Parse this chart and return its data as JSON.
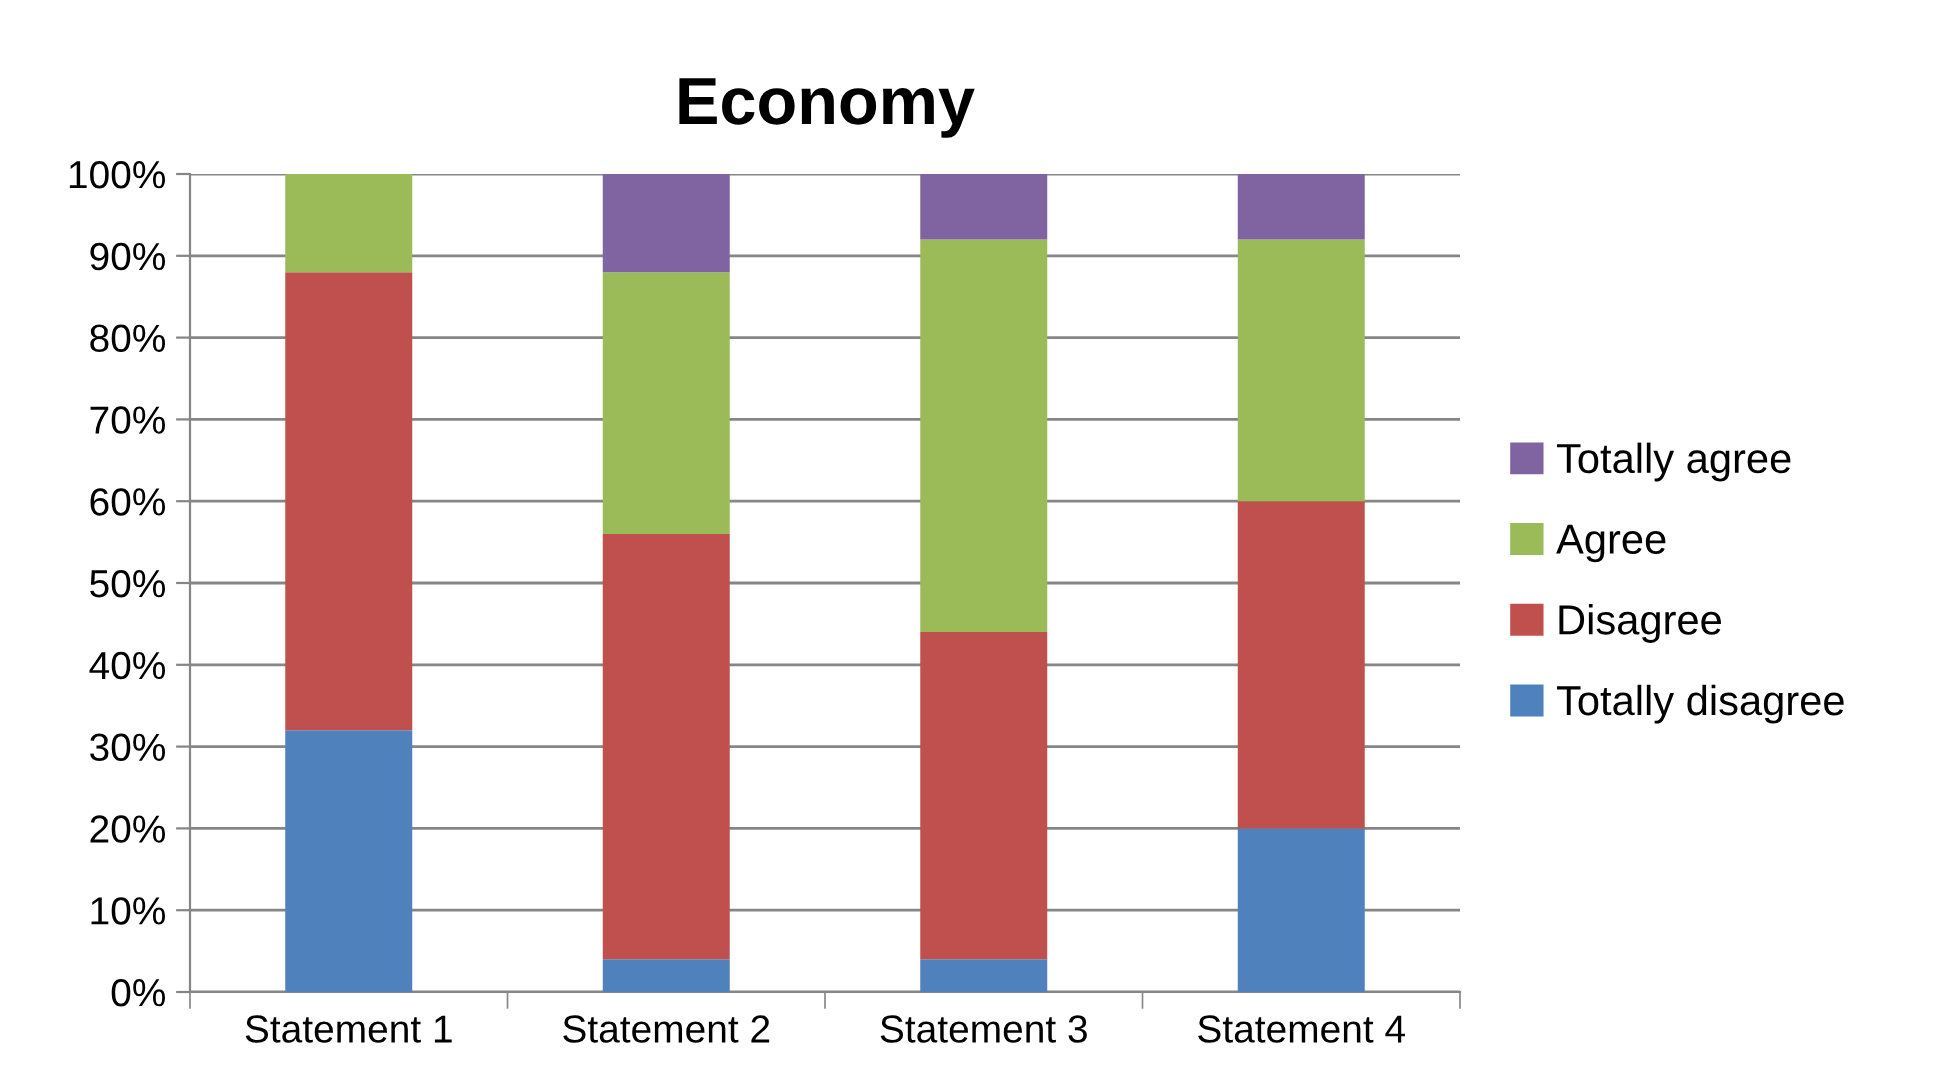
{
  "chart_data": {
    "type": "bar",
    "title": "Economy",
    "stacked": true,
    "categories": [
      "Statement 1",
      "Statement 2",
      "Statement 3",
      "Statement 4"
    ],
    "series": [
      {
        "name": "Totally disagree",
        "color": "#4f81bd",
        "values": [
          32,
          4,
          4,
          20
        ]
      },
      {
        "name": "Disagree",
        "color": "#c0504d",
        "values": [
          56,
          52,
          40,
          40
        ]
      },
      {
        "name": "Agree",
        "color": "#9bbb59",
        "values": [
          12,
          32,
          48,
          32
        ]
      },
      {
        "name": "Totally agree",
        "color": "#8064a2",
        "values": [
          0,
          12,
          8,
          8
        ]
      }
    ],
    "ylim": [
      0,
      100
    ],
    "yticks": [
      {
        "value": 0,
        "label": "0%"
      },
      {
        "value": 10,
        "label": "10%"
      },
      {
        "value": 20,
        "label": "20%"
      },
      {
        "value": 30,
        "label": "30%"
      },
      {
        "value": 40,
        "label": "40%"
      },
      {
        "value": 50,
        "label": "50%"
      },
      {
        "value": 60,
        "label": "60%"
      },
      {
        "value": 70,
        "label": "70%"
      },
      {
        "value": 80,
        "label": "80%"
      },
      {
        "value": 90,
        "label": "90%"
      },
      {
        "value": 100,
        "label": "100%"
      }
    ],
    "grid": "y",
    "legend": "right"
  }
}
